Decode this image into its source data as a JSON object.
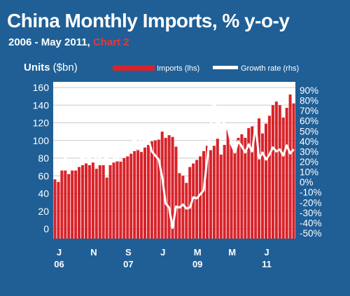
{
  "header": {
    "title": "China Monthly Imports, % y-o-y",
    "subtitle_main": "2006 - May 2011, ",
    "subtitle_accent": "Chart 2",
    "units_bold": "Units",
    "units_rest": " ($bn)"
  },
  "colors": {
    "background": "#1f5f96",
    "plot_background": "#ffffff",
    "bars": "#d8232a",
    "line": "#ffffff",
    "accent_text": "#e03a3e",
    "text": "#ffffff"
  },
  "chart_data": {
    "type": "bar",
    "title": "China Monthly Imports, % y-o-y",
    "subtitle": "2006 - May 2011, Chart 2",
    "ylabel": "Units ($bn)",
    "ylim": [
      0,
      160
    ],
    "y2lim": [
      -50,
      90
    ],
    "y_ticks": [
      "0",
      "20",
      "40",
      "60",
      "80",
      "100",
      "120",
      "140",
      "160"
    ],
    "y2_ticks": [
      "-50%",
      "-40%",
      "-30%",
      "-20%",
      "-10%",
      "0%",
      "10%",
      "20%",
      "30%",
      "40%",
      "50%",
      "60%",
      "70%",
      "80%",
      "90%"
    ],
    "x_ticks": [
      {
        "month": "J",
        "year": "06"
      },
      {
        "month": "N",
        "year": ""
      },
      {
        "month": "S",
        "year": "07"
      },
      {
        "month": "J",
        "year": ""
      },
      {
        "month": "M",
        "year": "09"
      },
      {
        "month": "M",
        "year": ""
      },
      {
        "month": "J",
        "year": "11"
      }
    ],
    "grid": true,
    "legend_position": "top",
    "series": [
      {
        "name": "Imports (lhs)",
        "kind": "bar",
        "axis": "left",
        "values": [
          56,
          53,
          66,
          66,
          62,
          66,
          66,
          70,
          72,
          74,
          72,
          75,
          68,
          72,
          72,
          58,
          72,
          75,
          77,
          76,
          80,
          82,
          85,
          88,
          90,
          87,
          92,
          95,
          99,
          100,
          101,
          110,
          103,
          106,
          104,
          93,
          63,
          60,
          52,
          70,
          74,
          78,
          82,
          88,
          94,
          89,
          94,
          102,
          84,
          95,
          112,
          96,
          88,
          103,
          107,
          103,
          114,
          116,
          117,
          125,
          108,
          119,
          128,
          140,
          144,
          140,
          126,
          137,
          152,
          142
        ]
      },
      {
        "name": "Growth rate (rhs)",
        "kind": "line",
        "axis": "right",
        "values": [
          31,
          35,
          30,
          23,
          28,
          25,
          31,
          26,
          22,
          27,
          20,
          35,
          20,
          24,
          27,
          21,
          33,
          24,
          21,
          36,
          37,
          38,
          36,
          44,
          32,
          46,
          38,
          43,
          30,
          26,
          22,
          5,
          -21,
          -25,
          -45,
          -24,
          -25,
          -22,
          -26,
          -25,
          -15,
          -16,
          -12,
          -8,
          22,
          53,
          88,
          48,
          68,
          56,
          52,
          37,
          29,
          40,
          35,
          29,
          37,
          30,
          56,
          23,
          29,
          22,
          27,
          34,
          30,
          32,
          26,
          36,
          28,
          32
        ]
      }
    ]
  }
}
